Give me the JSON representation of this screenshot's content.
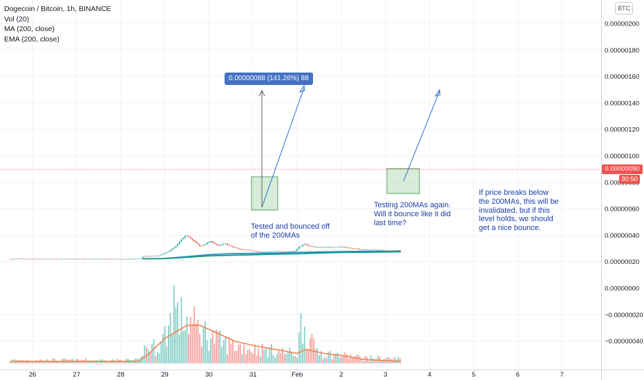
{
  "legend": {
    "symbol": "Dogecoin / Bitcoin, 1h, BINANCE",
    "volume": "Vol (20)",
    "ma": "MA (200, close)",
    "ema": "EMA (200, close)"
  },
  "currency_badge": "BTC",
  "last_price_tag": "0.00000090",
  "countdown_tag": "30:50",
  "measure_tooltip": "0.00000088 (141.26%) 88",
  "annotations": {
    "tested": [
      "Tested and bounced off",
      "of the 200MAs"
    ],
    "testing_again": [
      "Testing 200MAs again.",
      "Will it bounce like it did",
      "last time?"
    ],
    "if_breaks": [
      "If price breaks below",
      "the 200MAs, this will be",
      "invalidated, but if this",
      "level holds, we should",
      "get a nice bounce."
    ]
  },
  "colors": {
    "up": "#26a69a",
    "down": "#ef5350",
    "ma": "#2a8fd6",
    "ema": "#0e9980",
    "vol_ma": "#f0834f",
    "annotation": "#1b3ea8",
    "box_fill": "rgba(76,175,80,0.22)",
    "box_stroke": "#5a9e62"
  },
  "chart_data": {
    "type": "candlestick",
    "title": "Dogecoin / Bitcoin, 1h, BINANCE",
    "x_ticks": [
      "26",
      "27",
      "28",
      "29",
      "30",
      "31",
      "Feb",
      "2",
      "3",
      "4",
      "5",
      "6",
      "7"
    ],
    "y_ticks": [
      "0.00000200",
      "0.00000180",
      "0.00000160",
      "0.00000140",
      "0.00000120",
      "0.00000100",
      "0.00000080",
      "0.00000060",
      "0.00000040",
      "0.00000020",
      "0.00000000",
      "−0.00000020",
      "−0.00000040"
    ],
    "y_range": [
      -5e-07,
      2.07e-06
    ],
    "price_path": [
      [
        25.5,
        2.8e-08
      ],
      [
        26.5,
        2.75e-08
      ],
      [
        27.5,
        2.72e-08
      ],
      [
        28.3,
        2.72e-08
      ],
      [
        28.5,
        3e-08
      ],
      [
        28.55,
        4.8e-08
      ],
      [
        28.9,
        5e-08
      ],
      [
        29.1,
        8e-08
      ],
      [
        29.3,
        1.25e-07
      ],
      [
        29.42,
        1.75e-07
      ],
      [
        29.55,
        2.08e-07
      ],
      [
        29.7,
        1.6e-07
      ],
      [
        29.85,
        1.2e-07
      ],
      [
        30.0,
        1.5e-07
      ],
      [
        30.1,
        1.6e-07
      ],
      [
        30.25,
        1.25e-07
      ],
      [
        30.4,
        1.45e-07
      ],
      [
        30.55,
        1.2e-07
      ],
      [
        30.75,
        1e-07
      ],
      [
        30.95,
        9.5e-08
      ],
      [
        31.15,
        8e-08
      ],
      [
        31.3,
        7.8e-08
      ],
      [
        31.55,
        8.5e-08
      ],
      [
        31.8,
        8.4e-08
      ],
      [
        32.0,
        8.8e-08
      ],
      [
        32.08,
        1.18e-07
      ],
      [
        32.2,
        1.38e-07
      ],
      [
        32.4,
        1.18e-07
      ],
      [
        32.7,
        1.15e-07
      ],
      [
        32.9,
        1.18e-07
      ],
      [
        33.1,
        1.18e-07
      ],
      [
        33.3,
        1.06e-07
      ],
      [
        33.6,
        9.8e-08
      ],
      [
        33.9,
        9.5e-08
      ],
      [
        34.1,
        8.8e-08
      ],
      [
        34.35,
        9e-08
      ]
    ],
    "series": [
      {
        "name": "MA (200, close)",
        "points": [
          [
            28.5,
            2.8e-08
          ],
          [
            29.0,
            3.1e-08
          ],
          [
            29.5,
            4.5e-08
          ],
          [
            30.0,
            6e-08
          ],
          [
            30.5,
            6.7e-08
          ],
          [
            31.0,
            7e-08
          ],
          [
            31.5,
            7.2e-08
          ],
          [
            32.0,
            7.6e-08
          ],
          [
            32.5,
            8e-08
          ],
          [
            33.0,
            8.3e-08
          ],
          [
            33.5,
            8.5e-08
          ],
          [
            34.0,
            8.5e-08
          ],
          [
            34.35,
            8.6e-08
          ]
        ]
      },
      {
        "name": "EMA (200, close)",
        "points": [
          [
            28.5,
            2.8e-08
          ],
          [
            29.0,
            3e-08
          ],
          [
            29.5,
            4e-08
          ],
          [
            30.0,
            5e-08
          ],
          [
            30.5,
            5.5e-08
          ],
          [
            31.0,
            5.9e-08
          ],
          [
            31.5,
            6.3e-08
          ],
          [
            32.0,
            6.6e-08
          ],
          [
            32.5,
            7.2e-08
          ],
          [
            33.0,
            7.6e-08
          ],
          [
            33.5,
            7.8e-08
          ],
          [
            34.0,
            8e-08
          ],
          [
            34.35,
            8.2e-08
          ]
        ]
      }
    ],
    "volume_profile": [
      [
        25.5,
        0.04
      ],
      [
        28.45,
        0.04
      ],
      [
        28.5,
        0.18
      ],
      [
        28.9,
        0.22
      ],
      [
        29.0,
        0.35
      ],
      [
        29.1,
        0.45
      ],
      [
        29.2,
        0.85
      ],
      [
        29.3,
        0.55
      ],
      [
        29.5,
        0.55
      ],
      [
        29.7,
        0.45
      ],
      [
        30.0,
        0.35
      ],
      [
        30.3,
        0.25
      ],
      [
        30.6,
        0.22
      ],
      [
        31.0,
        0.18
      ],
      [
        31.5,
        0.15
      ],
      [
        32.0,
        0.12
      ],
      [
        32.1,
        0.55
      ],
      [
        32.3,
        0.25
      ],
      [
        32.6,
        0.12
      ],
      [
        33.0,
        0.1
      ],
      [
        33.5,
        0.07
      ],
      [
        34.35,
        0.06
      ]
    ],
    "volume_ma": [
      [
        25.5,
        0.02
      ],
      [
        28.4,
        0.02
      ],
      [
        28.6,
        0.08
      ],
      [
        29.0,
        0.25
      ],
      [
        29.5,
        0.38
      ],
      [
        29.8,
        0.38
      ],
      [
        30.2,
        0.3
      ],
      [
        30.6,
        0.22
      ],
      [
        31.0,
        0.18
      ],
      [
        31.5,
        0.14
      ],
      [
        32.0,
        0.1
      ],
      [
        32.2,
        0.14
      ],
      [
        32.6,
        0.1
      ],
      [
        33.0,
        0.08
      ],
      [
        33.5,
        0.04
      ],
      [
        34.35,
        0.02
      ]
    ],
    "last_price": 9e-08
  }
}
